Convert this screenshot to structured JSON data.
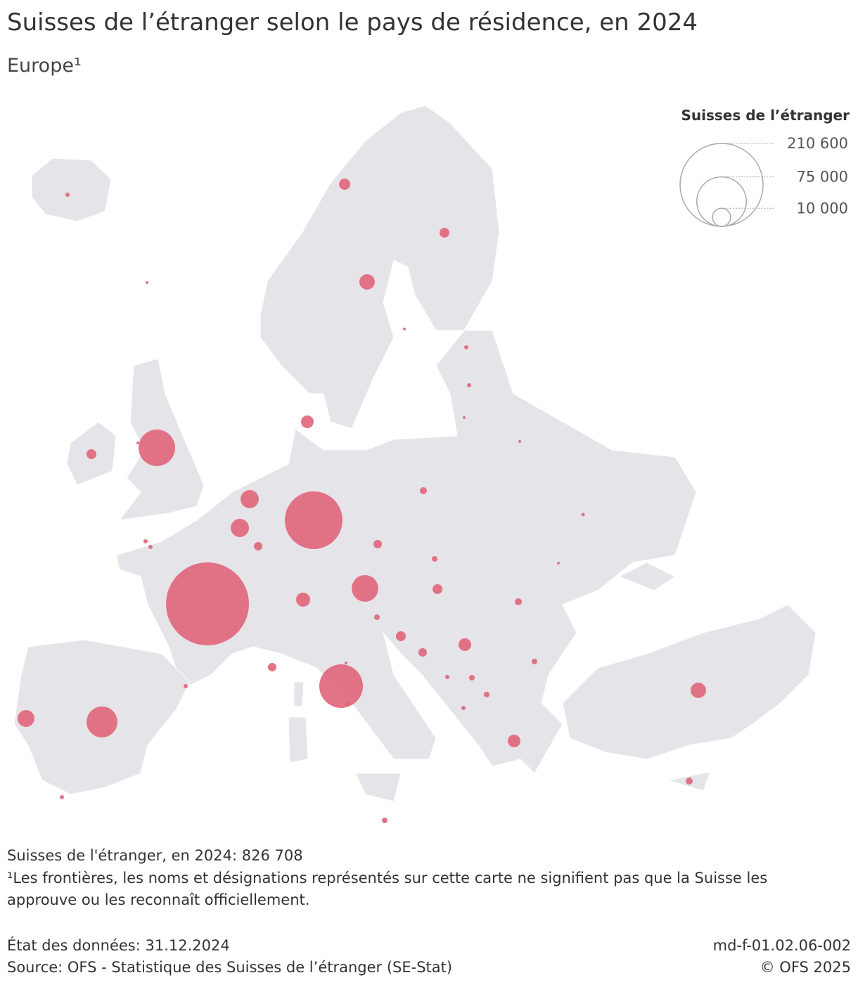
{
  "chart_data": {
    "type": "bubble-map",
    "title": "Suisses de l’étranger selon le pays de résidence, en 2024",
    "subtitle": "Europe¹",
    "color": "#e0657a",
    "values": [
      550,
      240,
      3870,
      2960,
      7320,
      240,
      550,
      550,
      240,
      240,
      4900,
      2960,
      240,
      40900,
      10200,
      10200,
      2180,
      101700,
      1510,
      2180,
      380,
      240,
      970,
      2960,
      1510,
      21800,
      6050,
      210600,
      550,
      550,
      970,
      2960,
      2180,
      4900,
      970,
      550,
      970,
      970,
      550,
      2180,
      550,
      58100,
      240,
      550,
      29300,
      8710,
      550,
      970,
      4900,
      7320,
      1510
    ],
    "legend": {
      "title": "Suisses de l’étranger",
      "ticks": [
        {
          "value": 210600,
          "label": "210 600"
        },
        {
          "value": 75000,
          "label": "75 000"
        },
        {
          "value": 10000,
          "label": "10 000"
        }
      ]
    },
    "total_note": "Suisses de l'étranger, en 2024: 826 708",
    "footnote": "¹Les frontières, les noms et désignations représentés sur cette carte ne signifient pas que la Suisse les approuve ou les reconnaît officiellement.",
    "data_status": "État des données: 31.12.2024",
    "source": "Source: OFS - Statistique des Suisses de l’étranger (SE-Stat)",
    "code": "md-f-01.02.06-002",
    "copyright": "© OFS 2025"
  }
}
